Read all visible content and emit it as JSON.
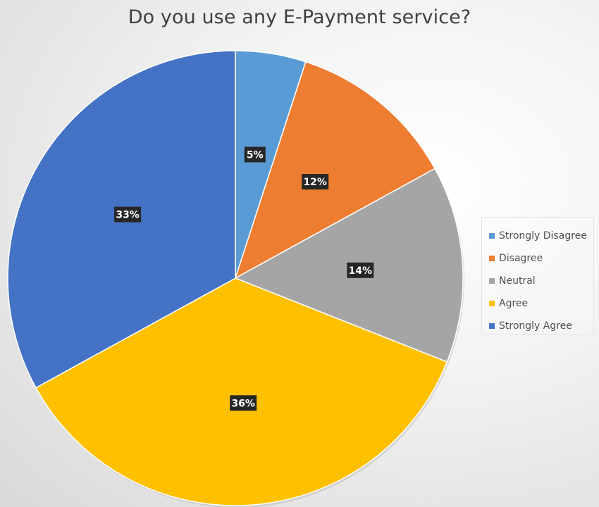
{
  "chart_data": {
    "type": "pie",
    "title": "Do you use any E-Payment service?",
    "legend_position": "right",
    "start_angle_deg": 0,
    "direction": "clockwise",
    "slices": [
      {
        "name": "Strongly Disagree",
        "value": 5,
        "label": "5%",
        "color": "#5b9bd5"
      },
      {
        "name": "Disagree",
        "value": 12,
        "label": "12%",
        "color": "#ed7d31"
      },
      {
        "name": "Neutral",
        "value": 14,
        "label": "14%",
        "color": "#a5a5a5"
      },
      {
        "name": "Agree",
        "value": 36,
        "label": "36%",
        "color": "#ffc000"
      },
      {
        "name": "Strongly Agree",
        "value": 33,
        "label": "33%",
        "color": "#4472c4"
      }
    ],
    "label_box_color": "#262626"
  }
}
